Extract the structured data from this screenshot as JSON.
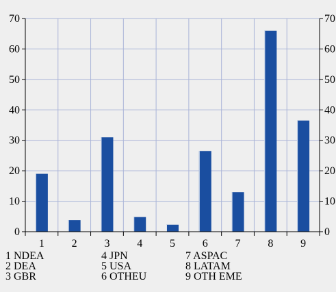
{
  "chart_data": {
    "type": "bar",
    "categories": [
      "1",
      "2",
      "3",
      "4",
      "5",
      "6",
      "7",
      "8",
      "9"
    ],
    "values": [
      19,
      3.8,
      31,
      4.8,
      2.3,
      26.5,
      13,
      66,
      36.5
    ],
    "ylim": [
      0,
      70
    ],
    "yticks_left": [
      "0",
      "10",
      "20",
      "30",
      "40",
      "50",
      "60",
      "70"
    ],
    "yticks_right": [
      "0",
      "10",
      "20",
      "30",
      "40",
      "50",
      "60",
      "70"
    ],
    "grid": true,
    "bar_color": "#1a4ea0",
    "grid_color": "#aab4d8",
    "legend": [
      [
        "1 NDEA",
        "2 DEA",
        "3 GBR"
      ],
      [
        "4 JPN",
        "5 USA",
        "6 OTHEU"
      ],
      [
        "7 ASPAC",
        "8 LATAM",
        "9 OTH EME"
      ]
    ]
  }
}
